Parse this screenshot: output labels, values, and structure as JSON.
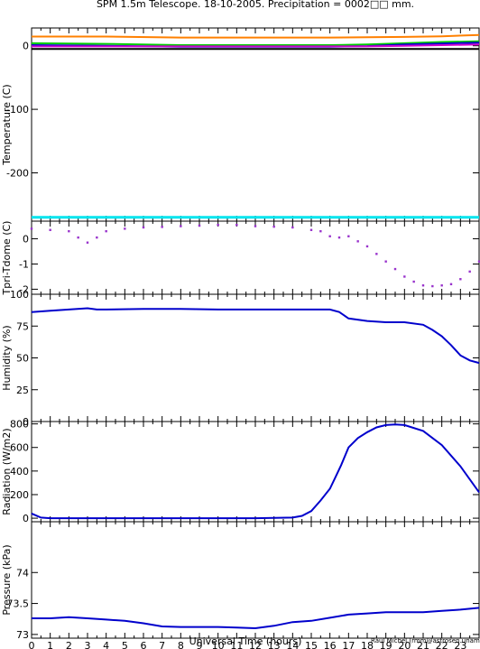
{
  "page": {
    "title": "SPM 1.5m Telescope. 18-10-2005. Precipitation = 0002□□ mm.",
    "xlabel": "Universal Time (hours)",
    "credit": "Raul Michel (rmm@astrosen.unam.mx)"
  },
  "chart_data": [
    {
      "id": "temperature",
      "type": "line",
      "ylabel": "Temperature (C)",
      "xlim": [
        0,
        24
      ],
      "ylim": [
        -276,
        28
      ],
      "yticks": [
        0,
        -100,
        -200
      ],
      "grid": false,
      "series": [
        {
          "color": "#ff8000",
          "x": [
            0,
            4,
            8,
            12,
            16,
            18,
            20,
            22,
            24
          ],
          "values": [
            14.5,
            14.5,
            13,
            13,
            13,
            13.5,
            14,
            15,
            17
          ]
        },
        {
          "color": "#00cc00",
          "x": [
            0,
            4,
            8,
            12,
            16,
            18,
            20,
            22,
            24
          ],
          "values": [
            4,
            3,
            1,
            1,
            1,
            2,
            4,
            6,
            7
          ]
        },
        {
          "color": "#0000cc",
          "x": [
            0,
            4,
            8,
            12,
            16,
            18,
            20,
            22,
            24
          ],
          "values": [
            1,
            0,
            -1.5,
            -1.5,
            -1.5,
            -0.5,
            2,
            3.5,
            5
          ]
        },
        {
          "color": "#cc00cc",
          "x": [
            0,
            4,
            8,
            12,
            16,
            18,
            20,
            22,
            24
          ],
          "values": [
            -1,
            -1,
            -1,
            -1,
            -1,
            -1,
            0,
            1,
            2
          ]
        },
        {
          "color": "#000000",
          "x": [
            0,
            4,
            8,
            12,
            16,
            18,
            20,
            22,
            24
          ],
          "values": [
            -5,
            -5,
            -5,
            -5,
            -5,
            -5,
            -5,
            -5,
            -5
          ]
        },
        {
          "color": "#00e5ee",
          "x": [
            0,
            24
          ],
          "values": [
            -270,
            -270
          ]
        }
      ]
    },
    {
      "id": "tpri_tdome",
      "type": "scatter",
      "ylabel": "Tpri-Tdome (C)",
      "xlim": [
        0,
        24
      ],
      "ylim": [
        -2.2,
        0.7
      ],
      "yticks": [
        0,
        -1,
        -2
      ],
      "grid": false,
      "series": [
        {
          "color": "#9933cc",
          "x": [
            0,
            1,
            2,
            2.5,
            3,
            3.5,
            4,
            5,
            6,
            7,
            8,
            9,
            10,
            11,
            12,
            13,
            14,
            15,
            15.5,
            16,
            16.5,
            17,
            17.5,
            18,
            18.5,
            19,
            19.5,
            20,
            20.5,
            21,
            21.5,
            22,
            22.5,
            23,
            23.5,
            24
          ],
          "values": [
            0.4,
            0.35,
            0.3,
            0.05,
            -0.15,
            0.05,
            0.3,
            0.4,
            0.45,
            0.47,
            0.5,
            0.52,
            0.55,
            0.55,
            0.5,
            0.48,
            0.45,
            0.35,
            0.3,
            0.1,
            0.05,
            0.1,
            -0.1,
            -0.3,
            -0.6,
            -0.9,
            -1.2,
            -1.5,
            -1.7,
            -1.85,
            -1.88,
            -1.85,
            -1.8,
            -1.6,
            -1.3,
            -0.9
          ]
        }
      ]
    },
    {
      "id": "humidity",
      "type": "line",
      "ylabel": "Humidity (%)",
      "xlim": [
        0,
        24
      ],
      "ylim": [
        0,
        100
      ],
      "yticks": [
        0,
        25,
        50,
        75,
        100
      ],
      "grid": false,
      "series": [
        {
          "color": "#0000cc",
          "x": [
            0,
            1,
            2,
            3,
            3.5,
            4,
            6,
            8,
            10,
            12,
            14,
            15,
            16,
            16.5,
            17,
            18,
            19,
            20,
            21,
            21.5,
            22,
            22.5,
            23,
            23.5,
            24
          ],
          "values": [
            86,
            87,
            88,
            89,
            88,
            88,
            88.5,
            88.5,
            88,
            88,
            88,
            88,
            88,
            86,
            81,
            79,
            78,
            78,
            76,
            72,
            67,
            60,
            52,
            48,
            46
          ]
        }
      ]
    },
    {
      "id": "radiation",
      "type": "line",
      "ylabel": "Radiation (W/m2)",
      "xlim": [
        0,
        24
      ],
      "ylim": [
        -30,
        820
      ],
      "yticks": [
        0,
        200,
        400,
        600,
        800
      ],
      "grid": false,
      "series": [
        {
          "color": "#0000cc",
          "x": [
            0,
            0.5,
            1,
            4,
            8,
            12,
            14,
            14.5,
            15,
            15.5,
            16,
            16.3,
            16.6,
            17,
            17.5,
            18,
            18.5,
            19,
            19.5,
            20,
            21,
            22,
            23,
            24
          ],
          "values": [
            40,
            5,
            0,
            0,
            0,
            0,
            5,
            20,
            60,
            150,
            250,
            350,
            450,
            600,
            680,
            730,
            770,
            790,
            795,
            790,
            740,
            620,
            440,
            220
          ]
        }
      ]
    },
    {
      "id": "pressure",
      "type": "line",
      "ylabel": "Pressure (kPa)",
      "xlim": [
        0,
        24
      ],
      "ylim": [
        72.94,
        74.82
      ],
      "yticks": [
        73,
        73.5,
        74
      ],
      "grid": false,
      "series": [
        {
          "color": "#0000cc",
          "x": [
            0,
            1,
            2,
            3,
            4,
            5,
            6,
            7,
            8,
            9,
            10,
            11,
            12,
            13,
            14,
            15,
            16,
            17,
            18,
            19,
            20,
            21,
            22,
            23,
            24
          ],
          "values": [
            73.26,
            73.26,
            73.28,
            73.26,
            73.24,
            73.22,
            73.18,
            73.13,
            73.12,
            73.12,
            73.12,
            73.11,
            73.1,
            73.14,
            73.2,
            73.22,
            73.27,
            73.32,
            73.34,
            73.36,
            73.36,
            73.36,
            73.38,
            73.4,
            73.43
          ]
        }
      ]
    }
  ]
}
